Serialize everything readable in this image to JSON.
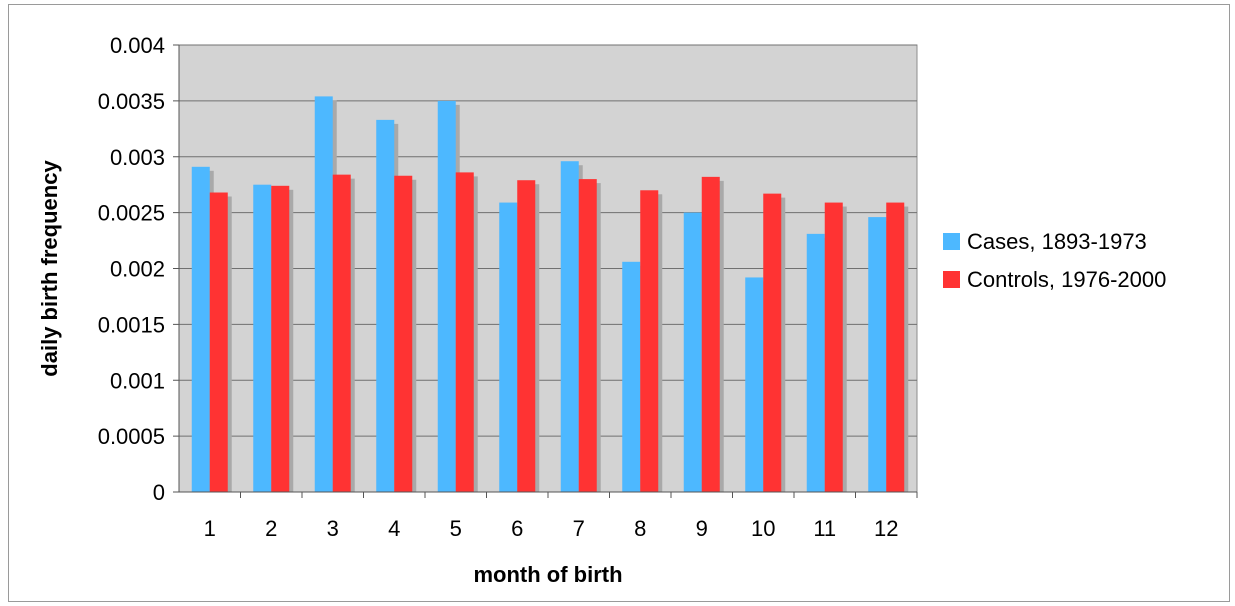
{
  "chart_data": {
    "type": "bar",
    "categories": [
      "1",
      "2",
      "3",
      "4",
      "5",
      "6",
      "7",
      "8",
      "9",
      "10",
      "11",
      "12"
    ],
    "series": [
      {
        "name": "Cases, 1893-1973",
        "color": "#4db8ff",
        "values": [
          0.00291,
          0.00275,
          0.00354,
          0.00333,
          0.0035,
          0.00259,
          0.00296,
          0.00206,
          0.0025,
          0.00192,
          0.00231,
          0.00246
        ]
      },
      {
        "name": "Controls, 1976-2000",
        "color": "#ff3333",
        "values": [
          0.00268,
          0.00274,
          0.00284,
          0.00283,
          0.00286,
          0.00279,
          0.0028,
          0.0027,
          0.00282,
          0.00267,
          0.00259,
          0.00259
        ]
      }
    ],
    "xlabel": "month of birth",
    "ylabel": "daily birth frequency",
    "ylim": [
      0,
      0.004
    ],
    "yticks": [
      "0",
      "0.0005",
      "0.001",
      "0.0015",
      "0.002",
      "0.0025",
      "0.003",
      "0.0035",
      "0.004"
    ],
    "grid": true,
    "plot_background": "#d3d3d3",
    "legend": "right"
  }
}
